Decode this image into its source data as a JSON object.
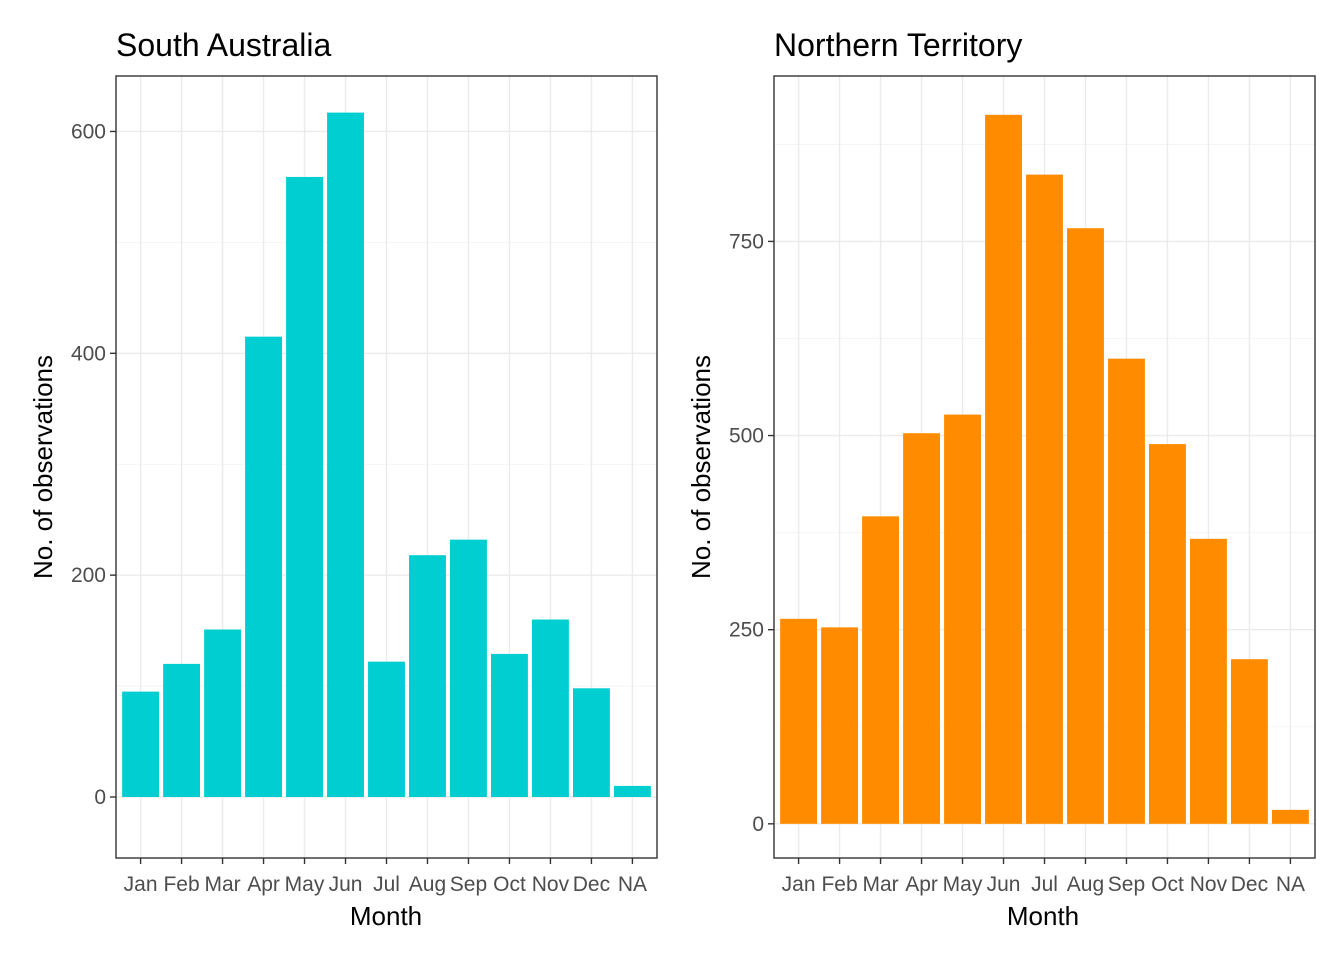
{
  "chart_data": [
    {
      "type": "bar",
      "title": "South Australia",
      "xlabel": "Month",
      "ylabel": "No. of observations",
      "categories": [
        "Jan",
        "Feb",
        "Mar",
        "Apr",
        "May",
        "Jun",
        "Jul",
        "Aug",
        "Sep",
        "Oct",
        "Nov",
        "Dec",
        "NA"
      ],
      "values": [
        95,
        120,
        151,
        415,
        559,
        617,
        122,
        218,
        232,
        129,
        160,
        98,
        10
      ],
      "yticks": [
        0,
        200,
        400,
        600
      ],
      "ytick_labels": [
        "0",
        "200",
        "400",
        "600"
      ],
      "ylim": [
        -55,
        650
      ],
      "color": "#00CED1",
      "grid": true,
      "legend": "none"
    },
    {
      "type": "bar",
      "title": "Northern Territory",
      "xlabel": "Month",
      "ylabel": "No. of observations",
      "categories": [
        "Jan",
        "Feb",
        "Mar",
        "Apr",
        "May",
        "Jun",
        "Jul",
        "Aug",
        "Sep",
        "Oct",
        "Nov",
        "Dec",
        "NA"
      ],
      "values": [
        264,
        253,
        396,
        503,
        527,
        913,
        836,
        767,
        599,
        489,
        367,
        212,
        18
      ],
      "yticks": [
        0,
        250,
        500,
        750
      ],
      "ytick_labels": [
        "0",
        "250",
        "500",
        "750"
      ],
      "ylim": [
        -44,
        963
      ],
      "color": "#FF8C00",
      "grid": true,
      "legend": "none"
    }
  ]
}
